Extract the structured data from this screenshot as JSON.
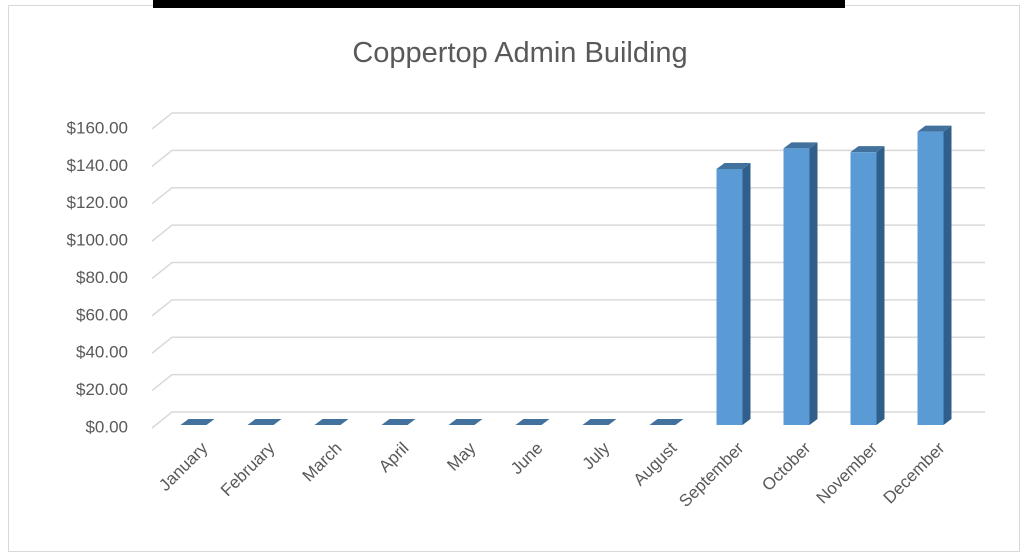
{
  "chart_data": {
    "type": "bar",
    "title": "Coppertop Admin Building",
    "categories": [
      "January",
      "February",
      "March",
      "April",
      "May",
      "June",
      "July",
      "August",
      "September",
      "October",
      "November",
      "December"
    ],
    "values": [
      0,
      0,
      0,
      0,
      0,
      0,
      0,
      0,
      137,
      148,
      146,
      157
    ],
    "color": "#5b9bd5",
    "ylim": [
      0,
      160
    ],
    "yticks": [
      {
        "value": 0,
        "label": "$0.00"
      },
      {
        "value": 20,
        "label": "$20.00"
      },
      {
        "value": 40,
        "label": "$40.00"
      },
      {
        "value": 60,
        "label": "$60.00"
      },
      {
        "value": 80,
        "label": "$80.00"
      },
      {
        "value": 100,
        "label": "$100.00"
      },
      {
        "value": 120,
        "label": "$120.00"
      },
      {
        "value": 140,
        "label": "$140.00"
      },
      {
        "value": 160,
        "label": "$160.00"
      }
    ],
    "grid": true
  }
}
